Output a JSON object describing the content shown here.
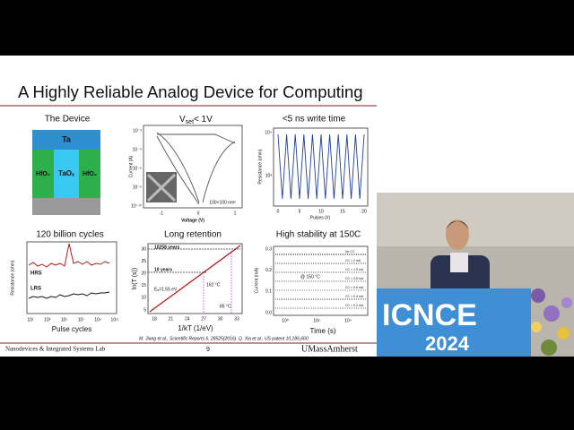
{
  "slide": {
    "title": "A Highly Reliable Analog Device for Computing",
    "device": {
      "title": "The Device",
      "top": "Ta",
      "left": "HfO₂",
      "middle": "TaOₓ",
      "right": "HfO₂"
    },
    "switching": {
      "title_main": "V",
      "title_sub": "set",
      "title_rest": "< 1V",
      "y_label": "Current (A)",
      "x_label": "Voltage (V)",
      "x_ticks": [
        "-1",
        "0",
        "1"
      ],
      "y_ticks": [
        "10⁻²",
        "10⁻⁴",
        "10⁻⁶",
        "10⁻⁸",
        "10⁻¹⁰"
      ],
      "note": "100×100 nm²"
    },
    "write": {
      "title": "<5 ns write time",
      "y_label": "Resistance (ohm)",
      "x_label": "Pulses (#)",
      "x_ticks": [
        "0",
        "5",
        "10",
        "15",
        "20"
      ],
      "y_ticks": [
        "10⁴",
        "10³"
      ]
    },
    "cycles": {
      "title": "120 billion cycles",
      "y_label": "Resistance (ohm)",
      "x_label": "Pulse cycles",
      "hrs": "HRS",
      "lrs": "LRS",
      "x_ticks": [
        "10¹",
        "10³",
        "10⁵",
        "10⁷",
        "10⁹",
        "10¹¹"
      ]
    },
    "retention": {
      "title": "Long retention",
      "y_label": "ln(T (s))",
      "x_label": "1/kT (1/eV)",
      "x_ticks": [
        "18",
        "21",
        "24",
        "27",
        "30",
        "33"
      ],
      "y_ticks": [
        "30",
        "25",
        "20",
        "15",
        "10",
        "5"
      ],
      "years_long": "10258 years",
      "years_short": "10 years",
      "temp_high": "162 °C",
      "temp_low": "85 °C",
      "energy": "Eₐ=1.55 eV"
    },
    "stability": {
      "title": "High stability at 150C",
      "y_label": "Current (mA)",
      "x_label": "Time (s)",
      "x_ticks": [
        "10⁰",
        "10²",
        "10⁴"
      ],
      "y_ticks": [
        "0.3",
        "0.2",
        "0.1",
        "0.0"
      ],
      "temp": "@ 150 °C",
      "legend": [
        "No CC",
        "CC = 2 mA",
        "CC = 1.5 mA",
        "CC = 0.8 mA",
        "CC = 0.6 mA",
        "CC = 0.4 mA",
        "CC = 0.2 mA"
      ]
    },
    "citation": "M. Jiang et al., Scientific Reports 6, 28525(2016). Q. Xia et al., US patent 10,186,660.",
    "footer": {
      "lab": "Nanodevices & Integrated Systems Lab",
      "page": "9",
      "university": "UMassAmherst"
    }
  },
  "video": {
    "sign": "ICNCE",
    "year": "2024"
  }
}
